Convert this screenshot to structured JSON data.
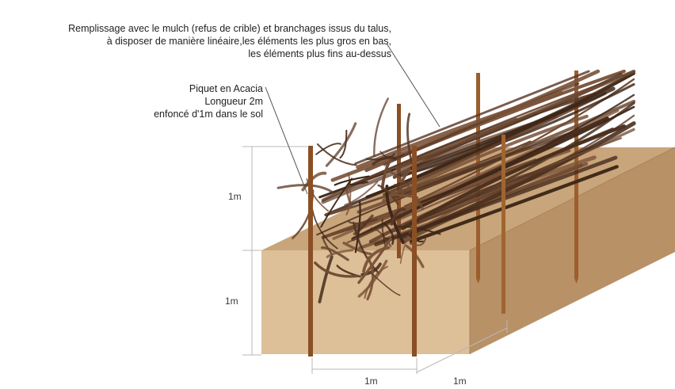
{
  "annotations": {
    "mulch_note": {
      "line1": "Remplissage avec le mulch (refus de crible) et branchages issus du talus,",
      "line2": "à disposer de manière linéaire,les éléments les plus gros en bas,",
      "line3": "les éléments plus fins au-dessus"
    },
    "stake_note": {
      "line1": "Piquet en Acacia",
      "line2": "Longueur 2m",
      "line3": "enfoncé d'1m dans le sol"
    }
  },
  "dimensions": {
    "height_above_ground": "1m",
    "height_below_ground": "1m",
    "width_front": "1m",
    "width_depth": "1m"
  },
  "colors": {
    "soil_front": "#ddbf98",
    "soil_top": "#c9a57b",
    "soil_side": "#b89167",
    "stake": "#8a4f24",
    "branch_dark": "#4a2f1e",
    "branch_mid": "#6e4a33",
    "dimension_line": "#b9b9b9"
  },
  "icons": {
    "stake": "wooden-stake-icon",
    "branches": "branch-bundle-icon"
  }
}
